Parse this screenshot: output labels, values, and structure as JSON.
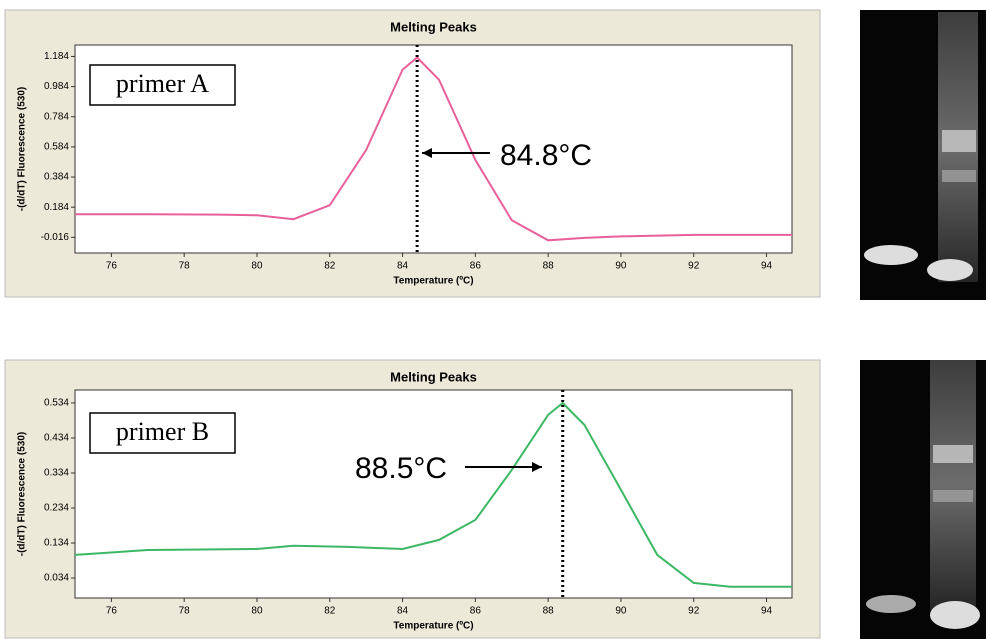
{
  "chart_data": [
    {
      "type": "line",
      "title": "Melting Peaks",
      "label": "primer A",
      "peak_label": "84.8°C",
      "peak_line": 84.4,
      "xlabel": "Temperature (ºC)",
      "ylabel": "-(d/dT) Fluorescence (530)",
      "x": [
        75,
        77,
        79,
        80,
        81,
        82,
        83,
        84,
        84.4,
        85,
        86,
        87,
        88,
        89,
        90,
        92,
        94.7
      ],
      "series": [
        {
          "color": "#e8609a",
          "values": [
            0.137,
            0.137,
            0.135,
            0.13,
            0.104,
            0.197,
            0.564,
            1.097,
            1.177,
            1.03,
            0.497,
            0.097,
            -0.036,
            -0.02,
            -0.01,
            0,
            0
          ]
        }
      ],
      "xlim": [
        75,
        94.7
      ],
      "xticks": [
        76,
        78,
        80,
        82,
        84,
        86,
        88,
        90,
        92,
        94
      ],
      "ylim": [
        -0.12,
        1.26
      ],
      "yticks": [
        -0.016,
        0.184,
        0.384,
        0.584,
        0.784,
        0.984,
        1.184
      ]
    },
    {
      "type": "line",
      "title": "Melting Peaks",
      "label": "primer B",
      "peak_label": "88.5°C",
      "peak_line": 88.4,
      "xlabel": "Temperature (ºC)",
      "ylabel": "-(d/dT) Fluorescence (530)",
      "x": [
        75,
        77,
        80,
        81,
        82.5,
        84,
        85,
        86,
        87,
        88,
        88.4,
        89,
        90,
        91,
        92,
        93,
        94.7
      ],
      "series": [
        {
          "color": "#3cb864",
          "values": [
            0.1,
            0.114,
            0.117,
            0.126,
            0.123,
            0.117,
            0.143,
            0.2,
            0.343,
            0.5,
            0.534,
            0.471,
            0.286,
            0.1,
            0.02,
            0.009,
            0.009
          ]
        }
      ],
      "xlim": [
        75,
        94.7
      ],
      "xticks": [
        76,
        78,
        80,
        82,
        84,
        86,
        88,
        90,
        92,
        94
      ],
      "ylim": [
        -0.023,
        0.571
      ],
      "yticks": [
        0.034,
        0.134,
        0.234,
        0.334,
        0.434,
        0.534
      ]
    }
  ]
}
